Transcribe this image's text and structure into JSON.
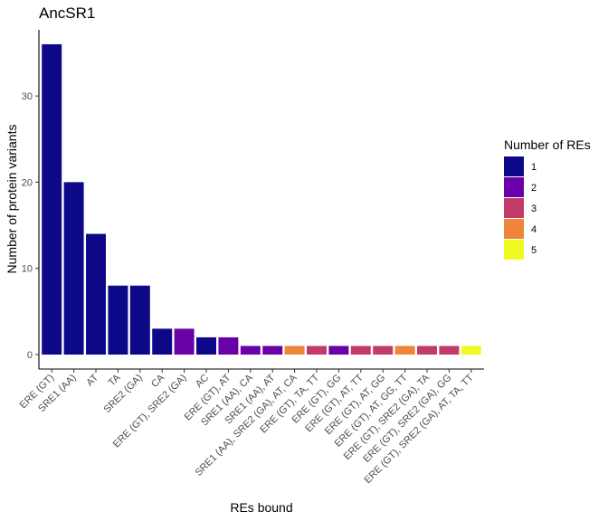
{
  "chart_data": {
    "type": "bar",
    "title": "AncSR1",
    "xlabel": "REs bound",
    "ylabel": "Number of protein variants",
    "ylim": [
      0,
      37.8
    ],
    "yticks": [
      0,
      10,
      20,
      30
    ],
    "grid": false,
    "legend": {
      "title": "Number of REs",
      "placement": "right",
      "entries": [
        {
          "label": "1",
          "color": "#0D0887"
        },
        {
          "label": "2",
          "color": "#6A00A8"
        },
        {
          "label": "3",
          "color": "#C13A6A"
        },
        {
          "label": "4",
          "color": "#F0843A"
        },
        {
          "label": "5",
          "color": "#F0F921"
        }
      ]
    },
    "categories": [
      "ERE (GT)",
      "SRE1 (AA)",
      "AT",
      "TA",
      "SRE2 (GA)",
      "CA",
      "ERE (GT), SRE2 (GA)",
      "AC",
      "ERE (GT), AT",
      "SRE1 (AA), CA",
      "SRE1 (AA), AT",
      "SRE1 (AA), SRE2 (GA), AT, CA",
      "ERE (GT), TA, TT",
      "ERE (GT), GG",
      "ERE (GT), AT, TT",
      "ERE (GT), AT, GG",
      "ERE (GT), AT, GG, TT",
      "ERE (GT), SRE2 (GA), TA",
      "ERE (GT), SRE2 (GA), GG",
      "ERE (GT), SRE2 (GA), AT, TA, TT"
    ],
    "values": [
      36,
      20,
      14,
      8,
      8,
      3,
      3,
      2,
      2,
      1,
      1,
      1,
      1,
      1,
      1,
      1,
      1,
      1,
      1,
      1
    ],
    "num_res": [
      1,
      1,
      1,
      1,
      1,
      1,
      2,
      1,
      2,
      2,
      2,
      4,
      3,
      2,
      3,
      3,
      4,
      3,
      3,
      5
    ]
  }
}
